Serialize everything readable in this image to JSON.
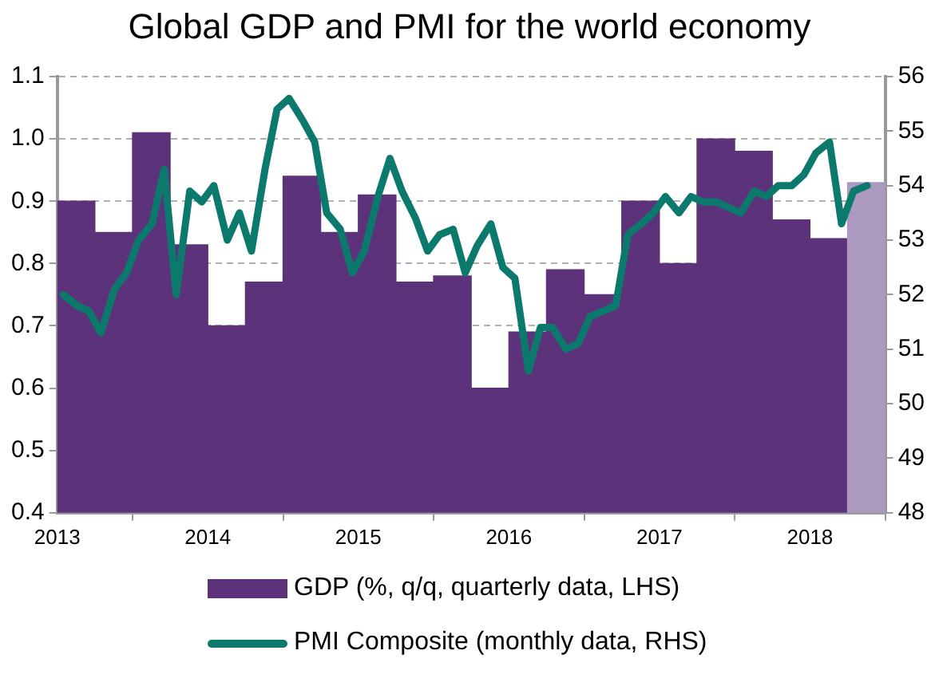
{
  "chart_data": {
    "type": "bar",
    "title": "Global GDP and PMI for the world economy",
    "xlim": [
      2013,
      2018.5
    ],
    "xticks": [
      2013,
      2014,
      2015,
      2016,
      2017,
      2018
    ],
    "ylim": [
      0.4,
      1.1
    ],
    "yticks": [
      0.4,
      0.5,
      0.6,
      0.7,
      0.8,
      0.9,
      {
        "value": 1,
        "label": "1.0"
      },
      1.1
    ],
    "y2lim": [
      48,
      56
    ],
    "y2ticks": [
      48,
      49,
      50,
      51,
      52,
      53,
      54,
      55,
      56
    ],
    "grid": "y",
    "legend": "bottom",
    "series": [
      {
        "name": "GDP (%, q/q, quarterly data, LHS)",
        "color": "#5c337a",
        "colors": [
          "#5c337a",
          "#5c337a",
          "#5c337a",
          "#5c337a",
          "#5c337a",
          "#5c337a",
          "#5c337a",
          "#5c337a",
          "#5c337a",
          "#5c337a",
          "#5c337a",
          "#5c337a",
          "#5c337a",
          "#5c337a",
          "#5c337a",
          "#5c337a",
          "#5c337a",
          "#5c337a",
          "#5c337a",
          "#5c337a",
          "#5c337a",
          "#ab99c0"
        ],
        "x": [
          2013.125,
          2013.375,
          2013.625,
          2013.875,
          2014.125,
          2014.375,
          2014.625,
          2014.875,
          2015.125,
          2015.375,
          2015.625,
          2015.875,
          2016.125,
          2016.375,
          2016.625,
          2016.875,
          2017.125,
          2017.375,
          2017.625,
          2017.875,
          2018.125,
          2018.375
        ],
        "values": [
          0.9,
          0.85,
          1.01,
          0.83,
          0.7,
          0.77,
          0.94,
          0.85,
          0.91,
          0.77,
          0.78,
          0.6,
          0.69,
          0.79,
          0.75,
          0.9,
          0.8,
          1.0,
          0.98,
          0.87,
          0.84,
          0.93
        ]
      },
      {
        "type": "line",
        "axis": "y2",
        "name": "PMI Composite (monthly data, RHS)",
        "color": "#0b7a6c",
        "x": [
          2013.04,
          2013.13,
          2013.21,
          2013.29,
          2013.38,
          2013.46,
          2013.54,
          2013.63,
          2013.71,
          2013.79,
          2013.88,
          2013.96,
          2014.04,
          2014.13,
          2014.21,
          2014.29,
          2014.38,
          2014.46,
          2014.54,
          2014.63,
          2014.71,
          2014.79,
          2014.88,
          2014.96,
          2015.04,
          2015.13,
          2015.21,
          2015.29,
          2015.38,
          2015.46,
          2015.54,
          2015.63,
          2015.71,
          2015.79,
          2015.88,
          2015.96,
          2016.04,
          2016.13,
          2016.21,
          2016.29,
          2016.38,
          2016.46,
          2016.54,
          2016.63,
          2016.71,
          2016.79,
          2016.88,
          2016.96,
          2017.04,
          2017.13,
          2017.21,
          2017.29,
          2017.38,
          2017.46,
          2017.54,
          2017.63,
          2017.71,
          2017.79,
          2017.88,
          2017.96,
          2018.04,
          2018.13,
          2018.21,
          2018.29,
          2018.38
        ],
        "values": [
          52.0,
          51.8,
          51.7,
          51.3,
          52.1,
          52.4,
          53.0,
          53.3,
          54.3,
          52.0,
          53.9,
          53.7,
          54.0,
          53.0,
          53.5,
          52.8,
          54.3,
          55.4,
          55.6,
          55.2,
          54.8,
          53.5,
          53.2,
          52.4,
          52.8,
          53.8,
          54.5,
          53.9,
          53.4,
          52.8,
          53.1,
          53.2,
          52.4,
          52.9,
          53.3,
          52.5,
          52.3,
          50.6,
          51.4,
          51.4,
          51.0,
          51.1,
          51.6,
          51.7,
          51.8,
          53.1,
          53.3,
          53.5,
          53.8,
          53.5,
          53.8,
          53.7,
          53.7,
          53.6,
          53.5,
          53.9,
          53.8,
          54.0,
          54.0,
          54.2,
          54.6,
          54.8,
          53.3,
          53.9,
          54.0
        ]
      }
    ]
  }
}
